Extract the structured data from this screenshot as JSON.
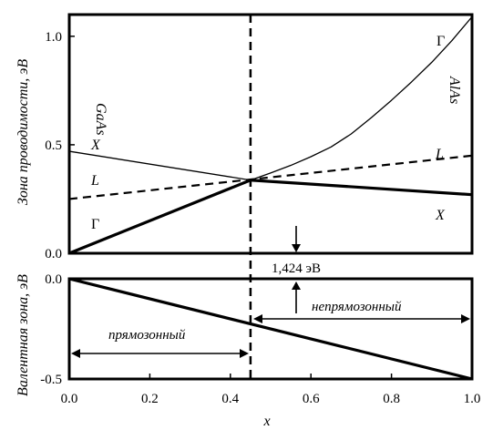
{
  "chart_data": [
    {
      "type": "line",
      "panel": "conduction-band",
      "ylabel": "Зона проводимости, эВ",
      "xlim": [
        0,
        1.0
      ],
      "ylim": [
        0,
        1.1
      ],
      "yticks": [
        "0.0",
        "0.5",
        "1.0"
      ],
      "ytick_values": [
        0,
        0.5,
        1.0
      ],
      "material_labels": {
        "left": "GaAs",
        "right": "AlAs"
      },
      "series": [
        {
          "name": "Γ",
          "style": "solid-thick",
          "start_label": "Γ",
          "x": [
            0,
            0.45
          ],
          "y": [
            0,
            0.337
          ]
        },
        {
          "name": "Γ",
          "style": "solid-thin",
          "x": [
            0.45,
            0.5,
            0.55,
            0.6,
            0.65,
            0.7,
            0.75,
            0.8,
            0.85,
            0.9,
            0.95,
            1.0
          ],
          "y": [
            0.337,
            0.37,
            0.405,
            0.445,
            0.49,
            0.55,
            0.625,
            0.705,
            0.79,
            0.88,
            0.98,
            1.09
          ]
        },
        {
          "name": "X",
          "style": "solid-thin",
          "start_label": "X",
          "x": [
            0,
            0.45
          ],
          "y": [
            0.47,
            0.337
          ]
        },
        {
          "name": "X",
          "style": "solid-thick",
          "end_label": "X",
          "x": [
            0.45,
            1.0
          ],
          "y": [
            0.337,
            0.27
          ]
        },
        {
          "name": "L",
          "style": "dashed",
          "start_label": "L",
          "end_label": "L",
          "x": [
            0,
            1.0
          ],
          "y": [
            0.25,
            0.45
          ]
        }
      ],
      "end_gamma_label": "Γ",
      "crossover_x": 0.45
    },
    {
      "type": "line",
      "panel": "valence-band",
      "ylabel": "Валентная зона, эВ",
      "xlabel": "x",
      "xlim": [
        0,
        1.0
      ],
      "ylim": [
        -0.5,
        0
      ],
      "yticks": [
        "0.0",
        "-0.5"
      ],
      "ytick_values": [
        0,
        -0.5
      ],
      "xticks": [
        "0.0",
        "0.2",
        "0.4",
        "0.6",
        "0.8",
        "1.0"
      ],
      "xtick_values": [
        0,
        0.2,
        0.4,
        0.6,
        0.8,
        1.0
      ],
      "series": [
        {
          "name": "",
          "style": "solid-thick",
          "x": [
            0,
            1.0
          ],
          "y": [
            0,
            -0.5
          ]
        }
      ],
      "crossover_x": 0.45
    }
  ],
  "annotations": {
    "gap_energy": "1,424 эВ",
    "gap_x": 0.57,
    "direct_label": "прямозонный",
    "indirect_label": "непрямозонный"
  }
}
